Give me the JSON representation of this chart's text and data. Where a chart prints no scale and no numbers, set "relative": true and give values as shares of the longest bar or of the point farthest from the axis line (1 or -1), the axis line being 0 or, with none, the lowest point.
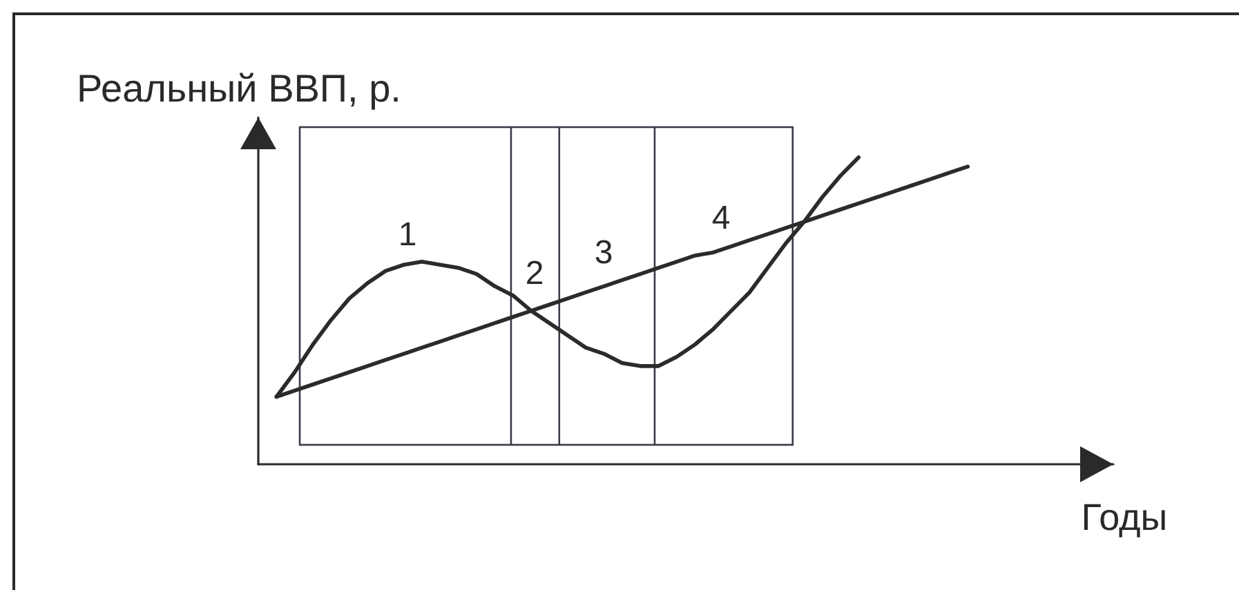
{
  "chart_data": {
    "type": "line",
    "ylabel": "Реальный ВВП, р.",
    "xlabel": "Годы",
    "relative": true,
    "categories": [
      null,
      null,
      null,
      null,
      null,
      null,
      null,
      null,
      null,
      null,
      null,
      null,
      null,
      null,
      null,
      null,
      null,
      null,
      null,
      null,
      null,
      null,
      null,
      null,
      null,
      null,
      null,
      null,
      null,
      null,
      null,
      null,
      null,
      null,
      null,
      null,
      null,
      null,
      null,
      null,
      null,
      null,
      null,
      null,
      null,
      null,
      null,
      null
    ],
    "series": [
      {
        "color": "#2b2b2b",
        "values": [
          null,
          0.22,
          0.3,
          0.39,
          0.47,
          0.54,
          0.59,
          0.63,
          0.65,
          0.66,
          0.65,
          0.64,
          0.62,
          0.58,
          0.55,
          0.5,
          0.46,
          0.42,
          0.38,
          0.36,
          0.33,
          0.32,
          0.32,
          0.35,
          0.39,
          0.44,
          0.5,
          0.56,
          0.64,
          0.72,
          0.79,
          0.87,
          0.94,
          1.0,
          null,
          null,
          null,
          null,
          null,
          null,
          null,
          null,
          null,
          null,
          null,
          null,
          null,
          null
        ]
      },
      {
        "color": "#2b2b2b",
        "values": [
          null,
          0.22,
          0.24,
          0.26,
          0.28,
          0.3,
          0.32,
          0.34,
          0.36,
          0.38,
          0.4,
          0.42,
          0.44,
          0.46,
          0.48,
          0.5,
          0.52,
          0.54,
          0.56,
          0.58,
          0.6,
          0.62,
          0.64,
          0.66,
          0.68,
          0.69,
          0.71,
          0.73,
          0.75,
          0.77,
          0.79,
          0.81,
          0.83,
          0.85,
          0.87,
          0.89,
          0.91,
          0.93,
          0.95,
          0.97,
          null,
          null,
          null,
          null,
          null,
          null,
          null,
          null
        ]
      }
    ],
    "annotations": [
      "1",
      "2",
      "3",
      "4"
    ]
  }
}
